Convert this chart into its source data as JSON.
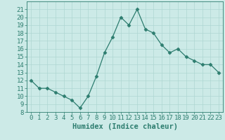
{
  "x": [
    0,
    1,
    2,
    3,
    4,
    5,
    6,
    7,
    8,
    9,
    10,
    11,
    12,
    13,
    14,
    15,
    16,
    17,
    18,
    19,
    20,
    21,
    22,
    23
  ],
  "y": [
    12,
    11,
    11,
    10.5,
    10,
    9.5,
    8.5,
    10,
    12.5,
    15.5,
    17.5,
    20,
    19,
    21,
    18.5,
    18,
    16.5,
    15.5,
    16,
    15,
    14.5,
    14,
    14,
    13
  ],
  "line_color": "#2d7d6f",
  "marker": "D",
  "marker_size": 2.5,
  "bg_color": "#cceae7",
  "grid_color": "#aed6d2",
  "xlabel": "Humidex (Indice chaleur)",
  "xlim": [
    -0.5,
    23.5
  ],
  "ylim": [
    8,
    22
  ],
  "yticks": [
    8,
    9,
    10,
    11,
    12,
    13,
    14,
    15,
    16,
    17,
    18,
    19,
    20,
    21
  ],
  "xticks": [
    0,
    1,
    2,
    3,
    4,
    5,
    6,
    7,
    8,
    9,
    10,
    11,
    12,
    13,
    14,
    15,
    16,
    17,
    18,
    19,
    20,
    21,
    22,
    23
  ],
  "xlabel_fontsize": 7.5,
  "tick_fontsize": 6.5
}
